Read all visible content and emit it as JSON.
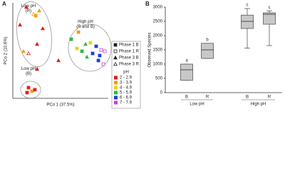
{
  "chart_data": [
    {
      "type": "scatter",
      "panel": "A",
      "xlabel": "PCo 1 (37.5%)",
      "ylabel": "PCo 2 (10.6%)",
      "xlim": [
        0,
        100
      ],
      "ylim": [
        0,
        100
      ],
      "annotations": [
        "Low pH\n(R)",
        "High pH\n(R and B)",
        "Low pH\n(B)"
      ],
      "series": [
        {
          "name": "Phase 1 B",
          "marker": "square",
          "filled": true,
          "x": [
            23.9,
            16.4,
            20.1,
            14.9,
            23.1,
            68.7,
            61.2,
            81.3,
            87.3,
            67.2,
            72.4,
            83.6,
            91.0,
            89.6
          ],
          "y": [
            86.6,
            11.2,
            7.5,
            6.0,
            9.0,
            69.4,
            61.9,
            58.2,
            54.5,
            52.2,
            49.3,
            47.0,
            44.8,
            39.6
          ],
          "colors": [
            "#f39c12",
            "#e02020",
            "#f39c12",
            "#e02020",
            "#e02020",
            "#f39c12",
            "#2db84a",
            "#e8d31a",
            "#1f3fd6",
            "#e8d31a",
            "#2db84a",
            "#1f3fd6",
            "#1f3fd6",
            "#1f3fd6"
          ]
        },
        {
          "name": "Phase 1 R",
          "marker": "square",
          "filled": false,
          "x": [
            92.5,
            96.3,
            94.8
          ],
          "y": [
            50.7,
            49.3,
            35.8
          ],
          "colors": [
            "#d23cd2",
            "#d23cd2",
            "#d23cd2"
          ]
        },
        {
          "name": "Phase 3 B",
          "marker": "triangle",
          "filled": true,
          "x": [
            14.2,
            27.6,
            7.5,
            31.3,
            25.4,
            11.2,
            47.8,
            25.4,
            76.1,
            77.6
          ],
          "y": [
            95.5,
            91.8,
            76.9,
            73.1,
            56.7,
            49.3,
            39.6,
            30.6,
            56.7,
            43.3
          ],
          "colors": [
            "#e02020",
            "#f39c12",
            "#e02020",
            "#e02020",
            "#e02020",
            "#f39c12",
            "#e02020",
            "#e02020",
            "#2db84a",
            "#2db84a"
          ]
        },
        {
          "name": "Phase 3 R",
          "marker": "triangle",
          "filled": false,
          "x": [
            21.6,
            16.4
          ],
          "y": [
            88.1,
            47.0
          ],
          "colors": [
            "#f39c12",
            "#e02020"
          ]
        }
      ],
      "ph_legend": {
        "title": "pH",
        "items": [
          {
            "label": "2 - 2.9",
            "color": "#e02020"
          },
          {
            "label": "3 - 3.9",
            "color": "#f39c12"
          },
          {
            "label": "4 - 4.9",
            "color": "#e8d31a"
          },
          {
            "label": "5 - 5.9",
            "color": "#2db84a"
          },
          {
            "label": "6 - 6.9",
            "color": "#1f3fd6"
          },
          {
            "label": "7 - 7.9",
            "color": "#d23cd2"
          }
        ]
      }
    },
    {
      "type": "box",
      "panel": "B",
      "ylabel": "Observed Species",
      "categories": [
        "B",
        "R",
        "B",
        "R"
      ],
      "groups": [
        "Low pH",
        "High pH"
      ],
      "ylim": [
        0,
        3000
      ],
      "yticks": [
        0,
        500,
        1000,
        1500,
        2000,
        2500,
        3000
      ],
      "color": "#c8c8c8",
      "min": [
        430,
        1200,
        1560,
        1650
      ],
      "q1": [
        430,
        1200,
        2250,
        2400
      ],
      "median": [
        800,
        1500,
        2500,
        2750
      ],
      "q3": [
        1000,
        1730,
        2720,
        2800
      ],
      "max": [
        1000,
        1730,
        2950,
        2870
      ],
      "letters": [
        "a",
        "b",
        "c",
        "c"
      ]
    }
  ]
}
